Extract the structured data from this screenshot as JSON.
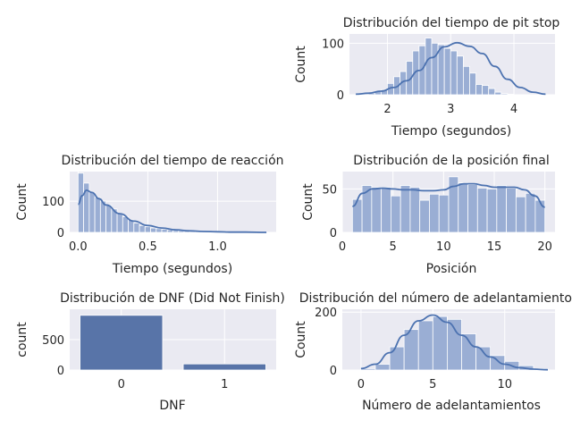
{
  "colors": {
    "panel_bg": "#eaeaf2",
    "hist_bar": "#9aaed4",
    "kde_line": "#4c72b0",
    "count_bar": "#5874a8",
    "bar_edge": "#ffffff"
  },
  "chart_data": [
    {
      "id": "pit",
      "type": "bar",
      "title": "Distribución del tiempo de pit stop",
      "xlabel": "Tiempo (segundos)",
      "ylabel": "Count",
      "xlim": [
        1.4,
        4.65
      ],
      "ylim": [
        0,
        118
      ],
      "xticks": [
        2,
        3,
        4
      ],
      "yticks": [
        0,
        100
      ],
      "grid": true,
      "bin_start": 1.6,
      "bin_width": 0.1,
      "values": [
        1,
        3,
        6,
        10,
        22,
        35,
        45,
        65,
        85,
        95,
        110,
        100,
        97,
        90,
        85,
        75,
        55,
        42,
        20,
        18,
        12,
        5,
        2,
        1
      ],
      "kde": {
        "x": [
          1.5,
          1.7,
          1.9,
          2.1,
          2.3,
          2.5,
          2.7,
          2.9,
          3.1,
          3.3,
          3.5,
          3.7,
          3.9,
          4.1,
          4.3,
          4.5
        ],
        "y": [
          1,
          3,
          7,
          14,
          27,
          47,
          72,
          93,
          101,
          94,
          80,
          55,
          30,
          14,
          5,
          1
        ]
      }
    },
    {
      "id": "reac",
      "type": "bar",
      "title": "Distribución del tiempo de reacción",
      "xlabel": "Tiempo (segundos)",
      "ylabel": "Count",
      "xlim": [
        -0.06,
        1.42
      ],
      "ylim": [
        0,
        195
      ],
      "xticks": [
        0.0,
        0.5,
        1.0
      ],
      "yticks": [
        0,
        100
      ],
      "grid": true,
      "bin_start": 0,
      "bin_width": 0.04,
      "values": [
        190,
        158,
        128,
        112,
        100,
        88,
        75,
        60,
        50,
        40,
        30,
        22,
        18,
        14,
        12,
        10,
        8,
        6,
        5,
        4,
        3,
        3,
        2,
        2,
        1,
        1,
        1,
        1,
        1,
        1,
        1,
        1,
        1,
        1
      ],
      "kde": {
        "x": [
          0.0,
          0.03,
          0.06,
          0.1,
          0.15,
          0.2,
          0.3,
          0.4,
          0.5,
          0.6,
          0.7,
          0.8,
          0.9,
          1.0,
          1.1,
          1.2,
          1.35
        ],
        "y": [
          90,
          118,
          135,
          128,
          108,
          88,
          60,
          36,
          22,
          14,
          8,
          5,
          3,
          2,
          1,
          1,
          0
        ]
      }
    },
    {
      "id": "pos",
      "type": "bar",
      "title": "Distribución de la posición final",
      "xlabel": "Posición",
      "ylabel": "Count",
      "xlim": [
        0,
        21
      ],
      "ylim": [
        0,
        70
      ],
      "xticks": [
        0,
        5,
        10,
        15,
        20
      ],
      "yticks": [
        0,
        50
      ],
      "grid": true,
      "bin_start": 1,
      "bin_width": 0.95,
      "values": [
        38,
        54,
        52,
        52,
        42,
        54,
        52,
        37,
        44,
        43,
        64,
        57,
        55,
        51,
        50,
        54,
        51,
        41,
        45,
        37
      ],
      "kde": {
        "x": [
          1,
          2,
          3,
          4,
          5,
          6,
          7,
          8,
          9,
          10,
          11,
          12,
          13,
          14,
          15,
          16,
          17,
          18,
          19,
          20
        ],
        "y": [
          30,
          45,
          50,
          51,
          50,
          49,
          49,
          48,
          48,
          49,
          53,
          56,
          56,
          54,
          52,
          52,
          52,
          49,
          42,
          29
        ]
      }
    },
    {
      "id": "dnf",
      "type": "bar",
      "title": "Distribución de DNF (Did Not Finish)",
      "xlabel": "DNF",
      "ylabel": "count",
      "categories": [
        "0",
        "1"
      ],
      "values": [
        900,
        100
      ],
      "ylim": [
        0,
        1000
      ],
      "yticks": [
        0,
        500
      ],
      "grid": true
    },
    {
      "id": "over",
      "type": "bar",
      "title": "Distribución del número de adelantamientos",
      "xlabel": "Número de adelantamientos",
      "ylabel": "Count",
      "xlim": [
        -1.3,
        13.5
      ],
      "ylim": [
        0,
        210
      ],
      "xticks": [
        0,
        5,
        10
      ],
      "yticks": [
        0,
        200
      ],
      "grid": true,
      "bin_start": 0,
      "bin_width": 1,
      "values": [
        5,
        20,
        80,
        140,
        170,
        185,
        175,
        125,
        80,
        50,
        30,
        15,
        5
      ],
      "kde": {
        "x": [
          0,
          1,
          2,
          3,
          4,
          5,
          6,
          7,
          8,
          9,
          10,
          11,
          12,
          13
        ],
        "y": [
          5,
          20,
          60,
          120,
          170,
          190,
          165,
          120,
          80,
          45,
          20,
          8,
          3,
          1
        ]
      }
    }
  ]
}
